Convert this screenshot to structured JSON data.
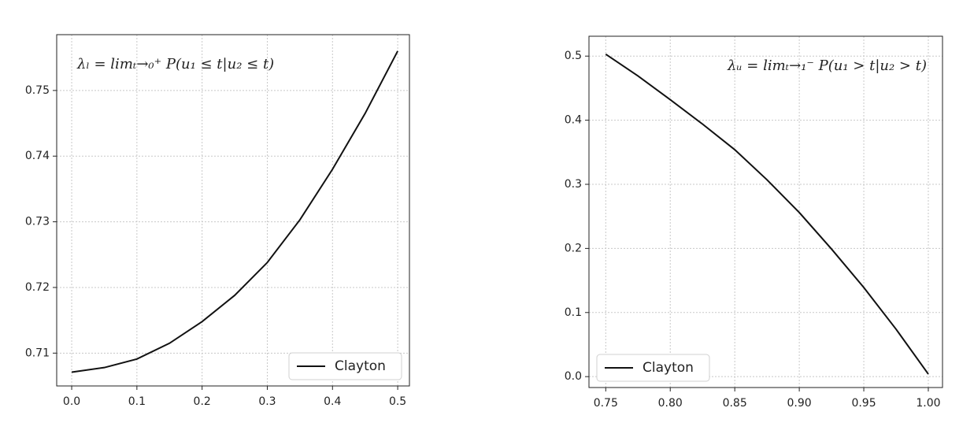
{
  "chart_data": [
    {
      "type": "line",
      "annotation": "λₗ = limₜ→₀⁺ P(u₁ ≤ t|u₂ ≤ t)",
      "x": [
        0,
        0.05,
        0.1,
        0.15,
        0.2,
        0.25,
        0.3,
        0.35,
        0.4,
        0.45,
        0.5
      ],
      "series": [
        {
          "name": "Clayton",
          "color": "#111111",
          "values": [
            0.7071,
            0.7078,
            0.7091,
            0.7115,
            0.7148,
            0.7188,
            0.7238,
            0.7303,
            0.738,
            0.7465,
            0.756
          ]
        }
      ],
      "xlim": [
        -0.023,
        0.518
      ],
      "ylim": [
        0.705,
        0.7585
      ],
      "xticks": [
        {
          "value": 0,
          "label": "0.0"
        },
        0.1,
        0.2,
        0.3,
        0.4,
        0.5
      ],
      "yticks": [
        0.71,
        0.72,
        0.73,
        0.74,
        0.75
      ],
      "grid": true,
      "legend": "lower-right"
    },
    {
      "type": "line",
      "annotation": "λᵤ = limₜ→₁⁻ P(u₁ > t|u₂ > t)",
      "x": [
        0.75,
        0.775,
        0.8,
        0.825,
        0.85,
        0.875,
        0.9,
        0.925,
        0.95,
        0.975,
        1.0
      ],
      "series": [
        {
          "name": "Clayton",
          "color": "#111111",
          "values": [
            0.503,
            0.469,
            0.432,
            0.394,
            0.354,
            0.307,
            0.256,
            0.199,
            0.139,
            0.074,
            0.004
          ]
        }
      ],
      "xlim": [
        0.737,
        1.011
      ],
      "ylim": [
        -0.017,
        0.531
      ],
      "xticks": [
        0.75,
        {
          "value": 0.8,
          "label": "0.80"
        },
        0.85,
        {
          "value": 0.9,
          "label": "0.90"
        },
        0.95,
        {
          "value": 1.0,
          "label": "1.00"
        }
      ],
      "yticks": [
        {
          "value": 0,
          "label": "0.0"
        },
        0.1,
        0.2,
        0.3,
        0.4,
        0.5
      ],
      "grid": true,
      "legend": "lower-left"
    }
  ]
}
